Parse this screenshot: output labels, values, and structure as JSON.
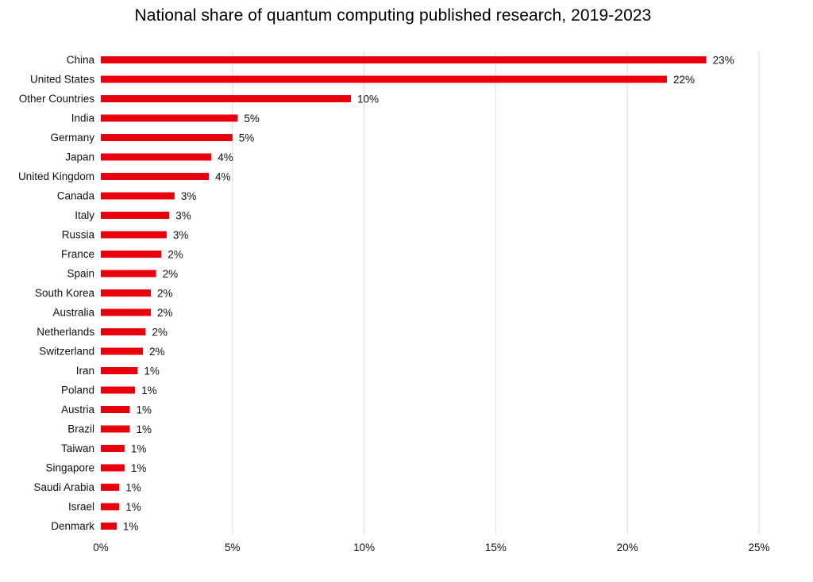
{
  "chart_data": {
    "type": "bar",
    "orientation": "horizontal",
    "title": "National share of quantum computing published research, 2019-2023",
    "xlabel": "",
    "ylabel": "",
    "xlim": [
      0,
      25
    ],
    "grid": "vertical",
    "bar_color": "#e8000d",
    "grid_color": "#dddddd",
    "categories": [
      "China",
      "United States",
      "Other Countries",
      "India",
      "Germany",
      "Japan",
      "United Kingdom",
      "Canada",
      "Italy",
      "Russia",
      "France",
      "Spain",
      "South Korea",
      "Australia",
      "Netherlands",
      "Switzerland",
      "Iran",
      "Poland",
      "Austria",
      "Brazil",
      "Taiwan",
      "Singapore",
      "Saudi Arabia",
      "Israel",
      "Denmark"
    ],
    "values": [
      23.0,
      21.5,
      9.5,
      5.2,
      5.0,
      4.2,
      4.1,
      2.8,
      2.6,
      2.5,
      2.3,
      2.1,
      1.9,
      1.9,
      1.7,
      1.6,
      1.4,
      1.3,
      1.1,
      1.1,
      0.9,
      0.9,
      0.7,
      0.7,
      0.6
    ],
    "value_labels": [
      "23%",
      "22%",
      "10%",
      "5%",
      "5%",
      "4%",
      "4%",
      "3%",
      "3%",
      "3%",
      "2%",
      "2%",
      "2%",
      "2%",
      "2%",
      "2%",
      "1%",
      "1%",
      "1%",
      "1%",
      "1%",
      "1%",
      "1%",
      "1%",
      "1%"
    ],
    "x_ticks": [
      0,
      5,
      10,
      15,
      20,
      25
    ],
    "x_tick_labels": [
      "0%",
      "5%",
      "10%",
      "15%",
      "20%",
      "25%"
    ]
  }
}
